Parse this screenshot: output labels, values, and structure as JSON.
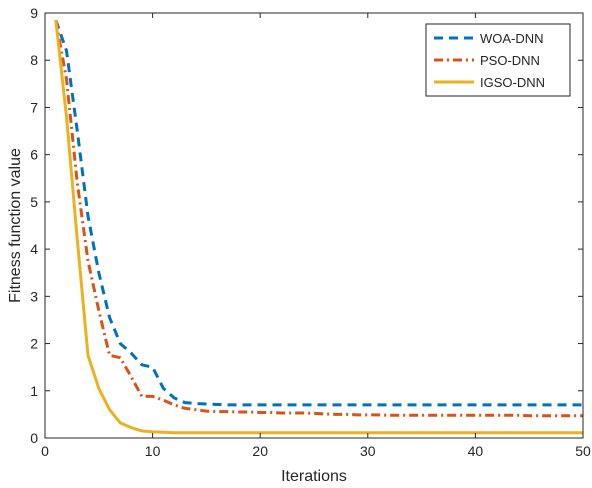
{
  "chart_data": {
    "type": "line",
    "xlabel": "Iterations",
    "ylabel": "Fitness function value",
    "xlim": [
      0,
      50
    ],
    "ylim": [
      0,
      9
    ],
    "xticks": [
      "0",
      "10",
      "20",
      "30",
      "40",
      "50"
    ],
    "yticks": [
      "0",
      "1",
      "2",
      "3",
      "4",
      "5",
      "6",
      "7",
      "8",
      "9"
    ],
    "legend_position": "top-right",
    "grid": false,
    "series": [
      {
        "name": "WOA-DNN",
        "color": "#0072BD",
        "dash": "dashed",
        "x": [
          1,
          2,
          3,
          4,
          5,
          6,
          7,
          8,
          9,
          10,
          11,
          12,
          13,
          14,
          15,
          16,
          17,
          18,
          19,
          20,
          21,
          22,
          23,
          24,
          25,
          26,
          27,
          28,
          29,
          30,
          31,
          32,
          33,
          34,
          35,
          36,
          37,
          38,
          39,
          40,
          41,
          42,
          43,
          44,
          45,
          46,
          47,
          48,
          49,
          50
        ],
        "y": [
          8.85,
          8.2,
          6.5,
          4.7,
          3.5,
          2.55,
          2.0,
          1.8,
          1.55,
          1.5,
          1.05,
          0.85,
          0.75,
          0.73,
          0.72,
          0.71,
          0.7,
          0.7,
          0.7,
          0.7,
          0.7,
          0.7,
          0.7,
          0.7,
          0.7,
          0.7,
          0.7,
          0.7,
          0.7,
          0.7,
          0.7,
          0.7,
          0.7,
          0.7,
          0.7,
          0.7,
          0.7,
          0.7,
          0.7,
          0.7,
          0.7,
          0.7,
          0.7,
          0.7,
          0.7,
          0.7,
          0.7,
          0.7,
          0.7,
          0.7
        ]
      },
      {
        "name": "PSO-DNN",
        "color": "#D95319",
        "dash": "dashdot",
        "x": [
          1,
          2,
          3,
          4,
          5,
          6,
          7,
          8,
          9,
          10,
          11,
          12,
          13,
          14,
          15,
          16,
          17,
          18,
          19,
          20,
          21,
          22,
          23,
          24,
          25,
          26,
          27,
          28,
          29,
          30,
          31,
          32,
          33,
          34,
          35,
          36,
          37,
          38,
          39,
          40,
          41,
          42,
          43,
          44,
          45,
          46,
          47,
          48,
          49,
          50
        ],
        "y": [
          8.85,
          7.6,
          5.4,
          3.75,
          2.7,
          1.75,
          1.7,
          1.3,
          0.88,
          0.88,
          0.8,
          0.7,
          0.63,
          0.6,
          0.57,
          0.56,
          0.56,
          0.55,
          0.55,
          0.54,
          0.54,
          0.53,
          0.53,
          0.53,
          0.52,
          0.51,
          0.5,
          0.5,
          0.49,
          0.49,
          0.49,
          0.48,
          0.48,
          0.48,
          0.48,
          0.48,
          0.48,
          0.48,
          0.48,
          0.48,
          0.48,
          0.48,
          0.48,
          0.48,
          0.47,
          0.47,
          0.47,
          0.47,
          0.47,
          0.47
        ]
      },
      {
        "name": "IGSO-DNN",
        "color": "#EDB120",
        "dash": "solid",
        "x": [
          1,
          2,
          3,
          4,
          5,
          6,
          7,
          8,
          9,
          10,
          11,
          12,
          13,
          14,
          15,
          16,
          17,
          18,
          19,
          20,
          21,
          22,
          23,
          24,
          25,
          26,
          27,
          28,
          29,
          30,
          31,
          32,
          33,
          34,
          35,
          36,
          37,
          38,
          39,
          40,
          41,
          42,
          43,
          44,
          45,
          46,
          47,
          48,
          49,
          50
        ],
        "y": [
          8.85,
          6.8,
          4.2,
          1.75,
          1.05,
          0.6,
          0.32,
          0.22,
          0.15,
          0.13,
          0.12,
          0.11,
          0.11,
          0.11,
          0.11,
          0.11,
          0.11,
          0.11,
          0.11,
          0.11,
          0.11,
          0.11,
          0.11,
          0.11,
          0.11,
          0.11,
          0.11,
          0.11,
          0.11,
          0.11,
          0.11,
          0.11,
          0.11,
          0.11,
          0.11,
          0.11,
          0.11,
          0.11,
          0.11,
          0.11,
          0.11,
          0.11,
          0.11,
          0.11,
          0.11,
          0.11,
          0.11,
          0.11,
          0.11,
          0.11
        ]
      }
    ]
  }
}
